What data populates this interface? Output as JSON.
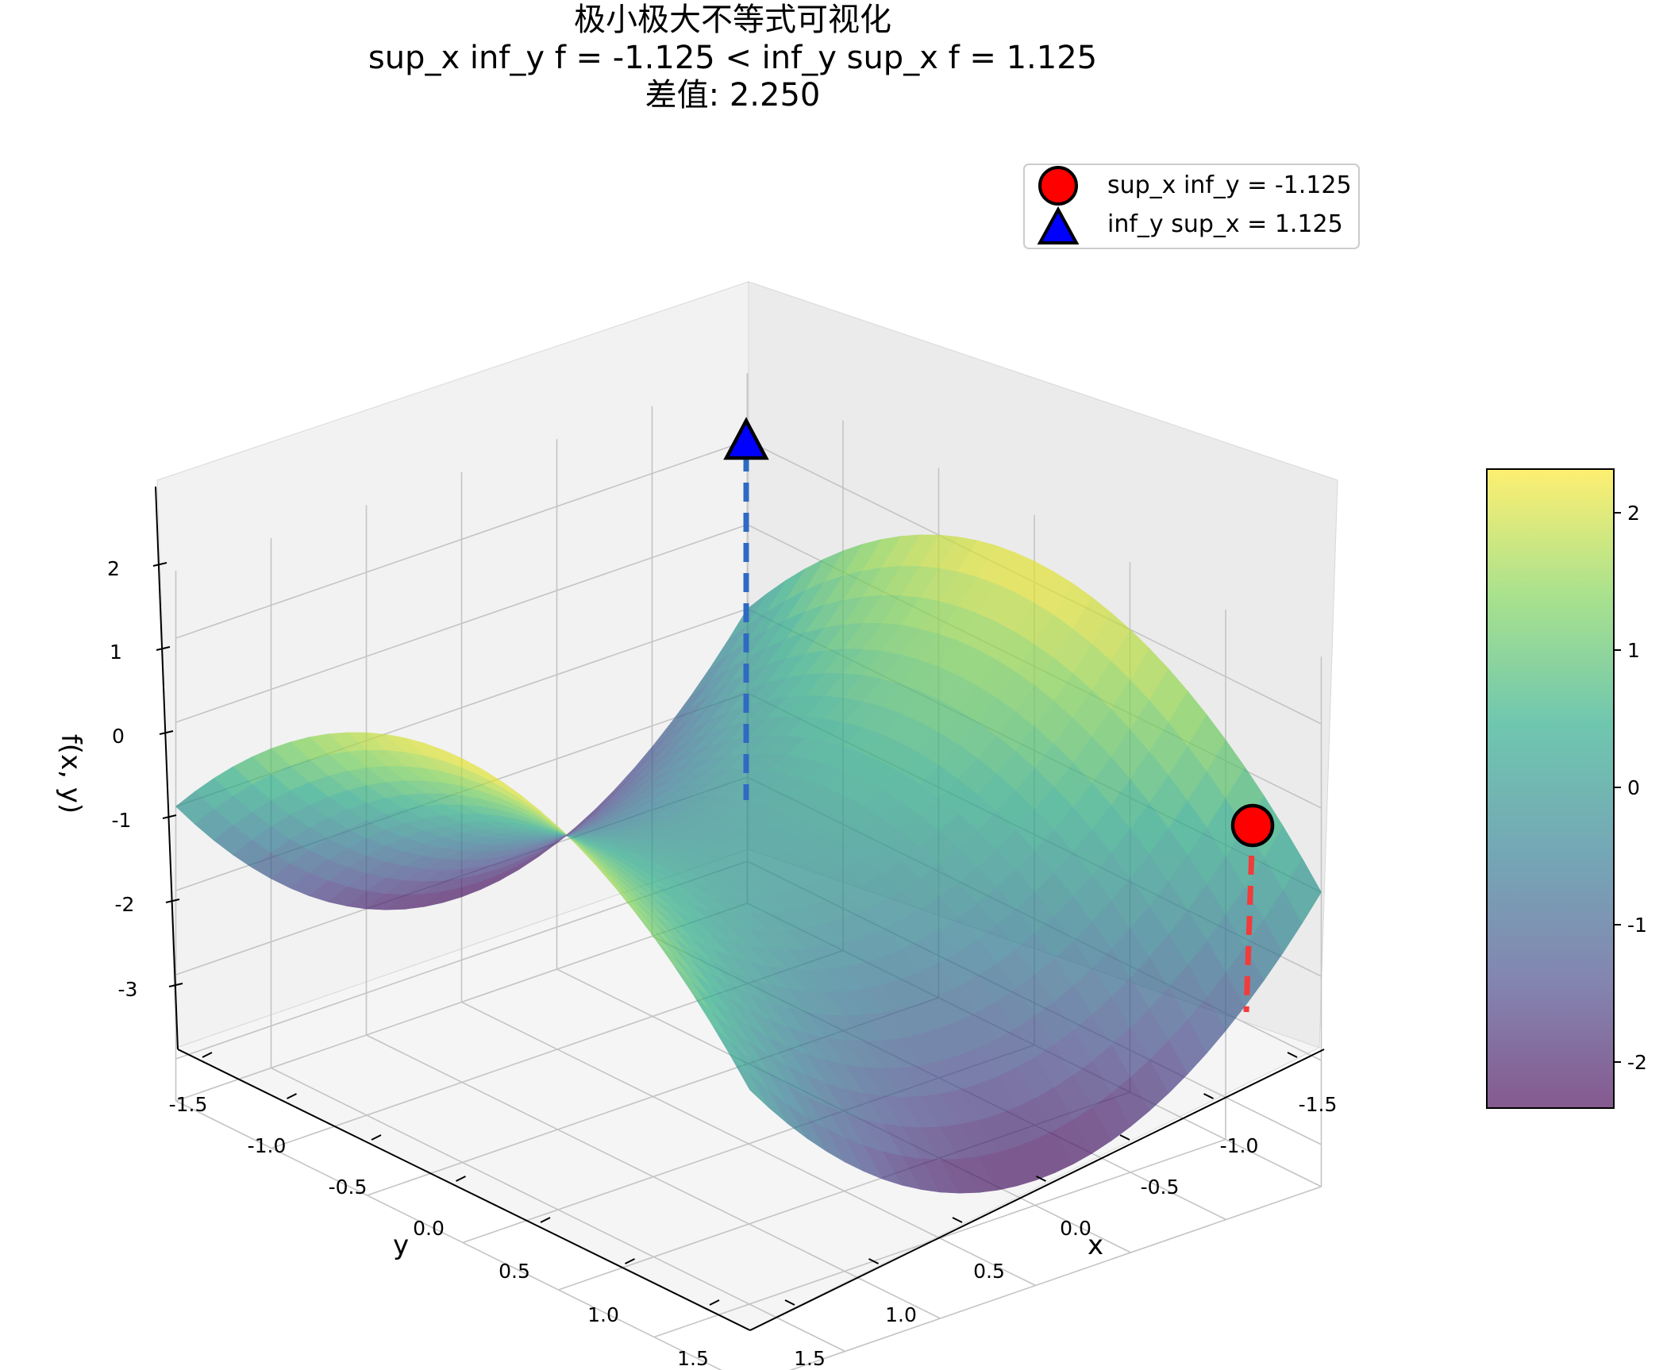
{
  "chart_data": {
    "type": "surface3d",
    "title": "极小极大不等式可视化",
    "subtitle": "sup_x inf_y f = -1.125 < inf_y sup_x f = 1.125",
    "subtitle2": "差值: 2.250",
    "xlabel": "x",
    "ylabel": "y",
    "zlabel": "f(x, y)",
    "xlim": [
      -1.5,
      1.5
    ],
    "ylim": [
      -1.5,
      1.5
    ],
    "zlim": [
      -3.5,
      2.8
    ],
    "x_ticks": [
      "-1.5",
      "-1.0",
      "-0.5",
      "0.0",
      "0.5",
      "1.0",
      "1.5"
    ],
    "y_ticks": [
      "-1.5",
      "-1.0",
      "-0.5",
      "0.0",
      "0.5",
      "1.0",
      "1.5"
    ],
    "z_ticks": [
      "2",
      "1",
      "0",
      "-1",
      "-2",
      "-3"
    ],
    "grid": true,
    "surface_vertices": [
      {
        "x": -1.5,
        "y": -1.5,
        "z": -1.125
      },
      {
        "x": -1.5,
        "y": 1.5,
        "z": -1.125
      },
      {
        "x": 1.5,
        "y": -1.5,
        "z": -1.125
      },
      {
        "x": 1.5,
        "y": 1.5,
        "z": -1.125
      }
    ],
    "surface_extremes": [
      {
        "x": 0.0,
        "y": -1.5,
        "z": 2.25
      },
      {
        "x": 0.0,
        "y": 1.5,
        "z": 2.25
      },
      {
        "x": -1.5,
        "y": 0.0,
        "z": -2.25
      },
      {
        "x": 1.5,
        "y": 0.0,
        "z": -2.25
      },
      {
        "x": 0.0,
        "y": 0.0,
        "z": 0.0
      }
    ],
    "markers": [
      {
        "name": "sup_x inf_y = -1.125",
        "shape": "circle",
        "color": "#ff0000",
        "x": -1.5,
        "y": -1.5,
        "z": -1.125
      },
      {
        "name": "inf_y sup_x = 1.125",
        "shape": "triangle",
        "color": "#0000ff",
        "x": -1.5,
        "y": 1.5,
        "z": 1.125
      }
    ],
    "colorbar": {
      "ticks": [
        "2",
        "1",
        "0",
        "-1",
        "-2"
      ],
      "range": [
        -2.3,
        2.3
      ],
      "colormap": "viridis",
      "alpha": 0.65
    },
    "legend_position": "top-right"
  },
  "colors": {
    "dashed_red": "#f23b3b",
    "dashed_blue": "#2f6ac2"
  }
}
